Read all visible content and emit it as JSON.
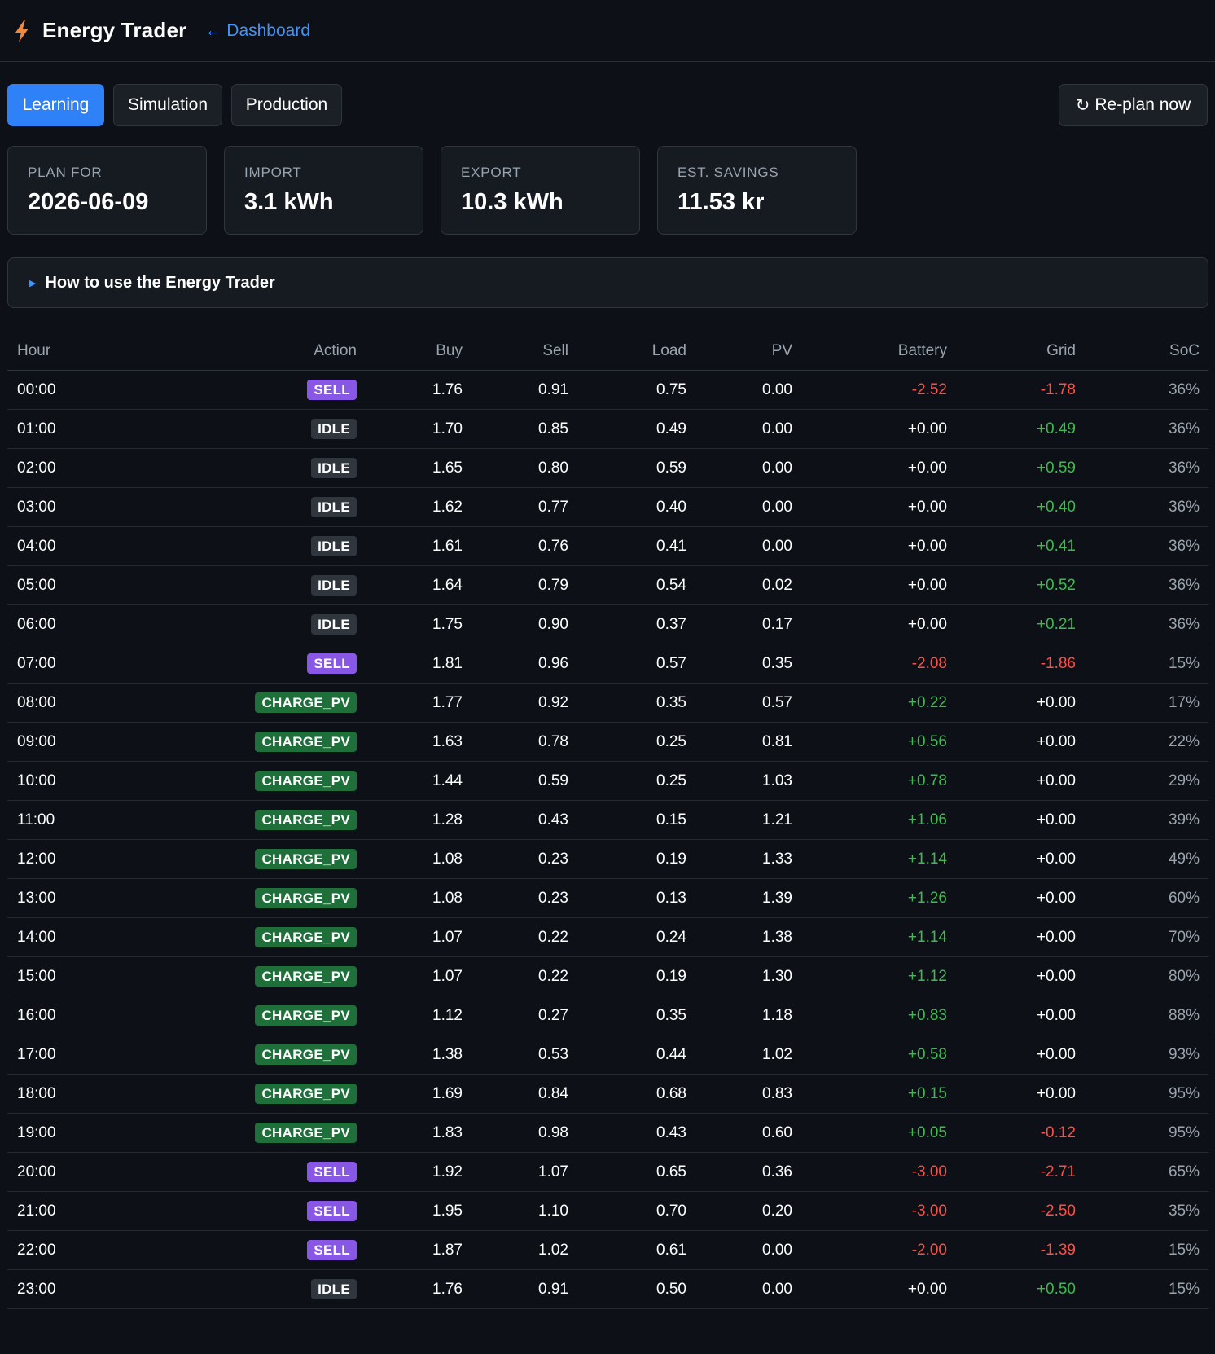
{
  "header": {
    "title": "Energy Trader",
    "back_link": "← Dashboard",
    "logo_icon": "lightning-bolt-icon",
    "accent": "#f0883e"
  },
  "tabs": [
    {
      "label": "Learning",
      "active": true
    },
    {
      "label": "Simulation",
      "active": false
    },
    {
      "label": "Production",
      "active": false
    }
  ],
  "replan": {
    "icon": "↻",
    "label": "Re-plan now"
  },
  "stats": [
    {
      "label": "PLAN FOR",
      "value": "2026-06-09"
    },
    {
      "label": "IMPORT",
      "value": "3.1 kWh"
    },
    {
      "label": "EXPORT",
      "value": "10.3 kWh"
    },
    {
      "label": "EST. SAVINGS",
      "value": "11.53 kr"
    }
  ],
  "howto": {
    "label": "How to use the Energy Trader"
  },
  "table": {
    "headers": {
      "hour": "Hour",
      "action": "Action",
      "buy": "Buy",
      "sell": "Sell",
      "load": "Load",
      "pv": "PV",
      "battery": "Battery",
      "grid": "Grid",
      "soc": "SoC"
    },
    "rows": [
      {
        "hour": "00:00",
        "action": "SELL",
        "buy": "1.76",
        "sell": "0.91",
        "load": "0.75",
        "pv": "0.00",
        "battery": "-2.52",
        "grid": "-1.78",
        "soc": "36%"
      },
      {
        "hour": "01:00",
        "action": "IDLE",
        "buy": "1.70",
        "sell": "0.85",
        "load": "0.49",
        "pv": "0.00",
        "battery": "+0.00",
        "grid": "+0.49",
        "soc": "36%"
      },
      {
        "hour": "02:00",
        "action": "IDLE",
        "buy": "1.65",
        "sell": "0.80",
        "load": "0.59",
        "pv": "0.00",
        "battery": "+0.00",
        "grid": "+0.59",
        "soc": "36%"
      },
      {
        "hour": "03:00",
        "action": "IDLE",
        "buy": "1.62",
        "sell": "0.77",
        "load": "0.40",
        "pv": "0.00",
        "battery": "+0.00",
        "grid": "+0.40",
        "soc": "36%"
      },
      {
        "hour": "04:00",
        "action": "IDLE",
        "buy": "1.61",
        "sell": "0.76",
        "load": "0.41",
        "pv": "0.00",
        "battery": "+0.00",
        "grid": "+0.41",
        "soc": "36%"
      },
      {
        "hour": "05:00",
        "action": "IDLE",
        "buy": "1.64",
        "sell": "0.79",
        "load": "0.54",
        "pv": "0.02",
        "battery": "+0.00",
        "grid": "+0.52",
        "soc": "36%"
      },
      {
        "hour": "06:00",
        "action": "IDLE",
        "buy": "1.75",
        "sell": "0.90",
        "load": "0.37",
        "pv": "0.17",
        "battery": "+0.00",
        "grid": "+0.21",
        "soc": "36%"
      },
      {
        "hour": "07:00",
        "action": "SELL",
        "buy": "1.81",
        "sell": "0.96",
        "load": "0.57",
        "pv": "0.35",
        "battery": "-2.08",
        "grid": "-1.86",
        "soc": "15%"
      },
      {
        "hour": "08:00",
        "action": "CHARGE_PV",
        "buy": "1.77",
        "sell": "0.92",
        "load": "0.35",
        "pv": "0.57",
        "battery": "+0.22",
        "grid": "+0.00",
        "soc": "17%"
      },
      {
        "hour": "09:00",
        "action": "CHARGE_PV",
        "buy": "1.63",
        "sell": "0.78",
        "load": "0.25",
        "pv": "0.81",
        "battery": "+0.56",
        "grid": "+0.00",
        "soc": "22%"
      },
      {
        "hour": "10:00",
        "action": "CHARGE_PV",
        "buy": "1.44",
        "sell": "0.59",
        "load": "0.25",
        "pv": "1.03",
        "battery": "+0.78",
        "grid": "+0.00",
        "soc": "29%"
      },
      {
        "hour": "11:00",
        "action": "CHARGE_PV",
        "buy": "1.28",
        "sell": "0.43",
        "load": "0.15",
        "pv": "1.21",
        "battery": "+1.06",
        "grid": "+0.00",
        "soc": "39%"
      },
      {
        "hour": "12:00",
        "action": "CHARGE_PV",
        "buy": "1.08",
        "sell": "0.23",
        "load": "0.19",
        "pv": "1.33",
        "battery": "+1.14",
        "grid": "+0.00",
        "soc": "49%"
      },
      {
        "hour": "13:00",
        "action": "CHARGE_PV",
        "buy": "1.08",
        "sell": "0.23",
        "load": "0.13",
        "pv": "1.39",
        "battery": "+1.26",
        "grid": "+0.00",
        "soc": "60%"
      },
      {
        "hour": "14:00",
        "action": "CHARGE_PV",
        "buy": "1.07",
        "sell": "0.22",
        "load": "0.24",
        "pv": "1.38",
        "battery": "+1.14",
        "grid": "+0.00",
        "soc": "70%"
      },
      {
        "hour": "15:00",
        "action": "CHARGE_PV",
        "buy": "1.07",
        "sell": "0.22",
        "load": "0.19",
        "pv": "1.30",
        "battery": "+1.12",
        "grid": "+0.00",
        "soc": "80%"
      },
      {
        "hour": "16:00",
        "action": "CHARGE_PV",
        "buy": "1.12",
        "sell": "0.27",
        "load": "0.35",
        "pv": "1.18",
        "battery": "+0.83",
        "grid": "+0.00",
        "soc": "88%"
      },
      {
        "hour": "17:00",
        "action": "CHARGE_PV",
        "buy": "1.38",
        "sell": "0.53",
        "load": "0.44",
        "pv": "1.02",
        "battery": "+0.58",
        "grid": "+0.00",
        "soc": "93%"
      },
      {
        "hour": "18:00",
        "action": "CHARGE_PV",
        "buy": "1.69",
        "sell": "0.84",
        "load": "0.68",
        "pv": "0.83",
        "battery": "+0.15",
        "grid": "+0.00",
        "soc": "95%"
      },
      {
        "hour": "19:00",
        "action": "CHARGE_PV",
        "buy": "1.83",
        "sell": "0.98",
        "load": "0.43",
        "pv": "0.60",
        "battery": "+0.05",
        "grid": "-0.12",
        "soc": "95%"
      },
      {
        "hour": "20:00",
        "action": "SELL",
        "buy": "1.92",
        "sell": "1.07",
        "load": "0.65",
        "pv": "0.36",
        "battery": "-3.00",
        "grid": "-2.71",
        "soc": "65%"
      },
      {
        "hour": "21:00",
        "action": "SELL",
        "buy": "1.95",
        "sell": "1.10",
        "load": "0.70",
        "pv": "0.20",
        "battery": "-3.00",
        "grid": "-2.50",
        "soc": "35%"
      },
      {
        "hour": "22:00",
        "action": "SELL",
        "buy": "1.87",
        "sell": "1.02",
        "load": "0.61",
        "pv": "0.00",
        "battery": "-2.00",
        "grid": "-1.39",
        "soc": "15%"
      },
      {
        "hour": "23:00",
        "action": "IDLE",
        "buy": "1.76",
        "sell": "0.91",
        "load": "0.50",
        "pv": "0.00",
        "battery": "+0.00",
        "grid": "+0.50",
        "soc": "15%"
      }
    ]
  }
}
